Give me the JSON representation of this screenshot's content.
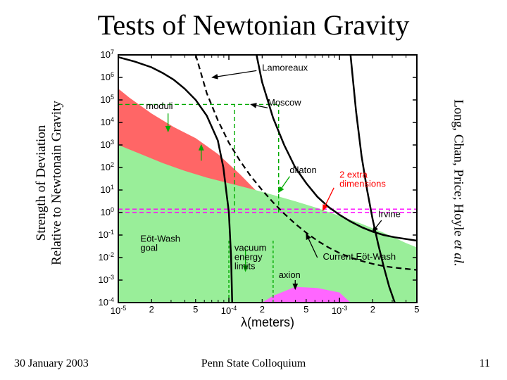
{
  "title": "Tests of Newtonian Gravity",
  "left_axis_label_line1": "Strength of Deviation",
  "left_axis_label_line2": "Relative to Newtonain Gravity",
  "right_label_plain": "Long, Chan, Price; Hoyle ",
  "right_label_italic": "et al.",
  "footer": {
    "date": "30 January 2003",
    "venue": "Penn State Colloquium",
    "page": "11"
  },
  "chart": {
    "type": "log-log-exclusion",
    "background_color": "#ffffff",
    "axis_color": "#000000",
    "xlabel": "λ(meters)",
    "xlim_exp": [
      -5,
      -2.3
    ],
    "ylim_exp": [
      -4,
      7
    ],
    "yticks_exp": [
      -4,
      -3,
      -2,
      -1,
      0,
      1,
      2,
      3,
      4,
      5,
      6,
      7
    ],
    "xticks_major_exp": [
      -5,
      -4,
      -3
    ],
    "xticks_minor_label": [
      "2",
      "5"
    ],
    "minor_tick_color": "#000000",
    "regions": [
      {
        "name": "moduli",
        "fill": "#ff6666",
        "opacity": 1.0,
        "points_ex_ey": [
          [
            -5,
            3
          ],
          [
            -5,
            5.5
          ],
          [
            -4.9,
            5.1
          ],
          [
            -4.7,
            4.4
          ],
          [
            -4.5,
            3.8
          ],
          [
            -4.3,
            3.3
          ],
          [
            -4.1,
            2.6
          ],
          [
            -3.9,
            1.7
          ],
          [
            -3.7,
            0.7
          ],
          [
            -3.5,
            -0.4
          ],
          [
            -3.3,
            -1.6
          ],
          [
            -3.1,
            -3.0
          ],
          [
            -3.0,
            -4.0
          ],
          [
            -5,
            -4
          ]
        ]
      },
      {
        "name": "dilaton",
        "fill": "#99ee99",
        "opacity": 1.0,
        "points_ex_ey": [
          [
            -5,
            3
          ],
          [
            -4.8,
            2.6
          ],
          [
            -4.6,
            2.2
          ],
          [
            -4.4,
            1.85
          ],
          [
            -4.2,
            1.55
          ],
          [
            -4.0,
            1.3
          ],
          [
            -3.8,
            1.05
          ],
          [
            -3.6,
            0.78
          ],
          [
            -3.4,
            0.5
          ],
          [
            -3.2,
            0.2
          ],
          [
            -3.0,
            -0.15
          ],
          [
            -2.8,
            -0.5
          ],
          [
            -2.6,
            -0.9
          ],
          [
            -2.4,
            -1.35
          ],
          [
            -2.3,
            -1.55
          ],
          [
            -2.3,
            -4
          ],
          [
            -5,
            -4
          ]
        ]
      },
      {
        "name": "axion",
        "fill": "#ff66ff",
        "opacity": 1.0,
        "points_ex_ey": [
          [
            -3.7,
            -4
          ],
          [
            -3.6,
            -3.7
          ],
          [
            -3.4,
            -3.3
          ],
          [
            -3.2,
            -3.35
          ],
          [
            -3.0,
            -3.55
          ],
          [
            -2.9,
            -4
          ]
        ]
      }
    ],
    "curves": [
      {
        "name": "lamoreaux",
        "color": "#000000",
        "width": 2.5,
        "dash": null,
        "label": "Lamoreaux",
        "label_pos_ex_ey": [
          -3.7,
          6.3
        ],
        "points_ex_ey": [
          [
            -5,
            6.9
          ],
          [
            -4.85,
            6.7
          ],
          [
            -4.7,
            6.45
          ],
          [
            -4.6,
            6.2
          ],
          [
            -4.5,
            5.9
          ],
          [
            -4.4,
            5.5
          ],
          [
            -4.3,
            5.0
          ],
          [
            -4.2,
            4.3
          ],
          [
            -4.1,
            3.2
          ],
          [
            -4.05,
            2.0
          ],
          [
            -4.0,
            0.0
          ],
          [
            -3.98,
            -2.0
          ],
          [
            -3.97,
            -4.0
          ]
        ]
      },
      {
        "name": "current-eot-wash",
        "color": "#000000",
        "width": 2.5,
        "dash": null,
        "label": "Current Eöt-Wash",
        "label_pos_ex_ey": [
          -3.15,
          -2.1
        ],
        "points_ex_ey": [
          [
            -3.75,
            7
          ],
          [
            -3.7,
            5.8
          ],
          [
            -3.6,
            4.2
          ],
          [
            -3.5,
            3.0
          ],
          [
            -3.4,
            2.0
          ],
          [
            -3.3,
            1.3
          ],
          [
            -3.2,
            0.7
          ],
          [
            -3.1,
            0.25
          ],
          [
            -3.0,
            -0.1
          ],
          [
            -2.9,
            -0.4
          ],
          [
            -2.8,
            -0.65
          ],
          [
            -2.7,
            -0.85
          ],
          [
            -2.6,
            -1.0
          ],
          [
            -2.5,
            -1.1
          ],
          [
            -2.3,
            -1.25
          ]
        ]
      },
      {
        "name": "irvine",
        "color": "#000000",
        "width": 2.5,
        "dash": null,
        "label": "Irvine",
        "label_pos_ex_ey": [
          -2.65,
          -0.2
        ],
        "points_ex_ey": [
          [
            -2.9,
            7
          ],
          [
            -2.85,
            4.5
          ],
          [
            -2.8,
            2.5
          ],
          [
            -2.75,
            1.0
          ],
          [
            -2.7,
            -0.3
          ],
          [
            -2.65,
            -1.4
          ],
          [
            -2.6,
            -2.4
          ],
          [
            -2.55,
            -3.3
          ],
          [
            -2.5,
            -4.0
          ]
        ]
      },
      {
        "name": "eot-wash-goal",
        "color": "#000000",
        "width": 2.2,
        "dash": "8,5",
        "label": "Eöt-Wash\ngoal",
        "label_pos_ex_ey": [
          -4.8,
          -1.3
        ],
        "points_ex_ey": [
          [
            -4.3,
            7
          ],
          [
            -4.2,
            5.3
          ],
          [
            -4.1,
            4.1
          ],
          [
            -4.0,
            3.1
          ],
          [
            -3.9,
            2.3
          ],
          [
            -3.8,
            1.6
          ],
          [
            -3.7,
            1.0
          ],
          [
            -3.6,
            0.45
          ],
          [
            -3.5,
            -0.05
          ],
          [
            -3.4,
            -0.5
          ],
          [
            -3.3,
            -0.9
          ],
          [
            -3.2,
            -1.25
          ],
          [
            -3.1,
            -1.55
          ],
          [
            -3.0,
            -1.8
          ],
          [
            -2.9,
            -2.0
          ],
          [
            -2.8,
            -2.15
          ],
          [
            -2.7,
            -2.28
          ],
          [
            -2.6,
            -2.38
          ],
          [
            -2.5,
            -2.45
          ],
          [
            -2.3,
            -2.55
          ]
        ]
      }
    ],
    "guides": [
      {
        "name": "moscow-v1",
        "color": "#00aa00",
        "dash": "6,4",
        "x_ex": -3.95,
        "y_ex_range": [
          0.0,
          4.8
        ]
      },
      {
        "name": "moscow-v2",
        "color": "#00aa00",
        "dash": "6,4",
        "x_ex": -3.55,
        "y_ex_range": [
          0.0,
          4.8
        ]
      },
      {
        "name": "moscow-h",
        "color": "#00aa00",
        "dash": "6,4",
        "y_ey": 4.8,
        "x_ex_range": [
          -5,
          -3.55
        ]
      },
      {
        "name": "vac1-v",
        "color": "#00aa00",
        "dash": "4,3",
        "x_ex": -4.0,
        "y_ex_range": [
          -4,
          -1.2
        ]
      },
      {
        "name": "vac2-v",
        "color": "#00aa00",
        "dash": "4,3",
        "x_ex": -3.6,
        "y_ex_range": [
          -4,
          -1.2
        ]
      },
      {
        "name": "extra-dim-h",
        "color": "#ff00ff",
        "dash": "6,4",
        "y_ey": 0.0,
        "x_ex_range": [
          -5,
          -2.3
        ]
      },
      {
        "name": "extra-dim-h2",
        "color": "#ff00ff",
        "dash": "6,4",
        "y_ey": 0.15,
        "x_ex_range": [
          -5,
          -2.3
        ]
      }
    ],
    "arrows": [
      {
        "name": "a-lam",
        "color": "#000000",
        "from_ex_ey": [
          -3.75,
          6.3
        ],
        "to_ex_ey": [
          -4.15,
          6.0
        ]
      },
      {
        "name": "a-moscow",
        "color": "#000000",
        "from_ex_ey": [
          -3.65,
          4.65
        ],
        "to_ex_ey": [
          -3.8,
          4.8
        ]
      },
      {
        "name": "a-moduli1",
        "color": "#00aa00",
        "from_ex_ey": [
          -4.55,
          4.4
        ],
        "to_ex_ey": [
          -4.55,
          3.6
        ]
      },
      {
        "name": "a-moduli2",
        "color": "#00aa00",
        "from_ex_ey": [
          -4.25,
          2.3
        ],
        "to_ex_ey": [
          -4.25,
          3.0
        ]
      },
      {
        "name": "a-dilaton",
        "color": "#00aa00",
        "from_ex_ey": [
          -3.45,
          1.6
        ],
        "to_ex_ey": [
          -3.55,
          0.9
        ]
      },
      {
        "name": "a-2extra",
        "color": "#ff0000",
        "from_ex_ey": [
          -3.05,
          1.1
        ],
        "to_ex_ey": [
          -3.15,
          0.1
        ]
      },
      {
        "name": "a-irvine",
        "color": "#000000",
        "from_ex_ey": [
          -2.62,
          -0.35
        ],
        "to_ex_ey": [
          -2.7,
          -0.85
        ]
      },
      {
        "name": "a-cew",
        "color": "#000000",
        "from_ex_ey": [
          -3.2,
          -2.0
        ],
        "to_ex_ey": [
          -3.3,
          -0.95
        ]
      },
      {
        "name": "a-vac",
        "color": "#00aa00",
        "from_ex_ey": [
          -3.85,
          -1.6
        ],
        "to_ex_ey": [
          -3.85,
          -2.6
        ]
      },
      {
        "name": "a-axion",
        "color": "#000000",
        "from_ex_ey": [
          -3.4,
          -3.0
        ],
        "to_ex_ey": [
          -3.4,
          -3.4
        ]
      }
    ],
    "annotations": [
      {
        "name": "moduli",
        "text": "moduli",
        "pos_ex_ey": [
          -4.75,
          4.6
        ],
        "color": "#000000"
      },
      {
        "name": "moscow",
        "text": "Moscow",
        "pos_ex_ey": [
          -3.65,
          4.75
        ],
        "color": "#000000"
      },
      {
        "name": "dilaton",
        "text": "dilaton",
        "pos_ex_ey": [
          -3.45,
          1.75
        ],
        "color": "#000000"
      },
      {
        "name": "two-extra",
        "text": "2 extra\ndimensions",
        "pos_ex_ey": [
          -3.0,
          1.55
        ],
        "color": "#ff0000"
      },
      {
        "name": "vac",
        "text": "vacuum\nenergy\nlimits",
        "pos_ex_ey": [
          -3.95,
          -1.7
        ],
        "color": "#000000"
      },
      {
        "name": "axion",
        "text": "axion",
        "pos_ex_ey": [
          -3.55,
          -2.9
        ],
        "color": "#000000"
      }
    ]
  }
}
